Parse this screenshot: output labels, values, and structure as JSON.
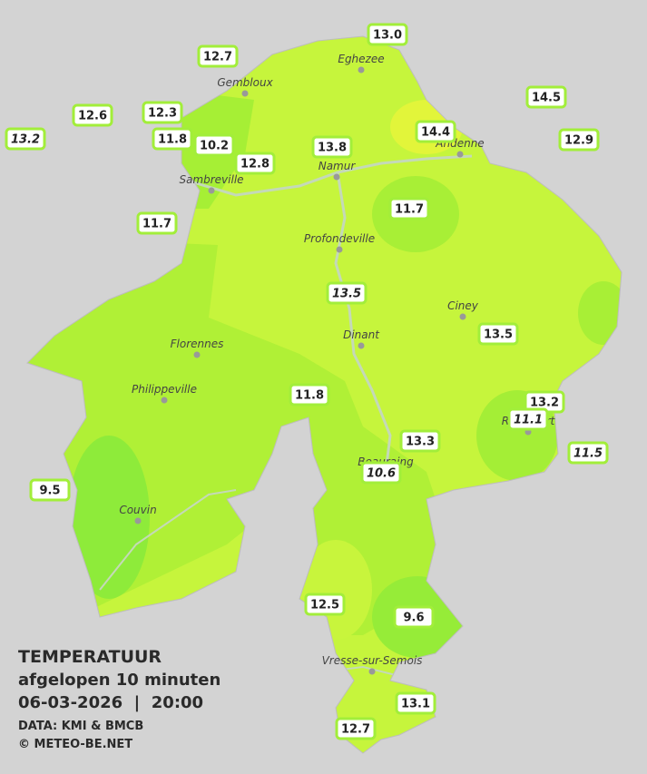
{
  "legend": {
    "title": "TEMPERATUUR",
    "subtitle": "afgelopen 10 minuten",
    "datetime": "06-03-2026  |  20:00",
    "source": "DATA: KMI & BMCB",
    "copyright": "© METEO-BE.NET"
  },
  "cities": [
    "Eghezee",
    "Gembloux",
    "Andenne",
    "Namur",
    "Sambreville",
    "Profondeville",
    "Ciney",
    "Dinant",
    "Florennes",
    "Philippeville",
    "Rochefort",
    "Beauraing",
    "Couvin",
    "Vresse-sur-Semois"
  ],
  "stations": [
    {
      "label": "13.0",
      "italic": false
    },
    {
      "label": "12.7",
      "italic": false
    },
    {
      "label": "14.5",
      "italic": false
    },
    {
      "label": "12.6",
      "italic": false
    },
    {
      "label": "12.3",
      "italic": false
    },
    {
      "label": "13.2",
      "italic": true
    },
    {
      "label": "11.8",
      "italic": false
    },
    {
      "label": "10.2",
      "italic": false
    },
    {
      "label": "14.4",
      "italic": false
    },
    {
      "label": "12.9",
      "italic": false
    },
    {
      "label": "13.8",
      "italic": false
    },
    {
      "label": "12.8",
      "italic": false
    },
    {
      "label": "11.7",
      "italic": false
    },
    {
      "label": "11.7",
      "italic": false
    },
    {
      "label": "13.5",
      "italic": true
    },
    {
      "label": "13.5",
      "italic": false
    },
    {
      "label": "11.8",
      "italic": false
    },
    {
      "label": "13.2",
      "italic": false
    },
    {
      "label": "11.1",
      "italic": true
    },
    {
      "label": "13.3",
      "italic": false
    },
    {
      "label": "11.5",
      "italic": true
    },
    {
      "label": "10.6",
      "italic": true
    },
    {
      "label": "9.5",
      "italic": false
    },
    {
      "label": "12.5",
      "italic": false
    },
    {
      "label": "9.6",
      "italic": false
    },
    {
      "label": "13.1",
      "italic": false
    },
    {
      "label": "12.7",
      "italic": false
    }
  ]
}
